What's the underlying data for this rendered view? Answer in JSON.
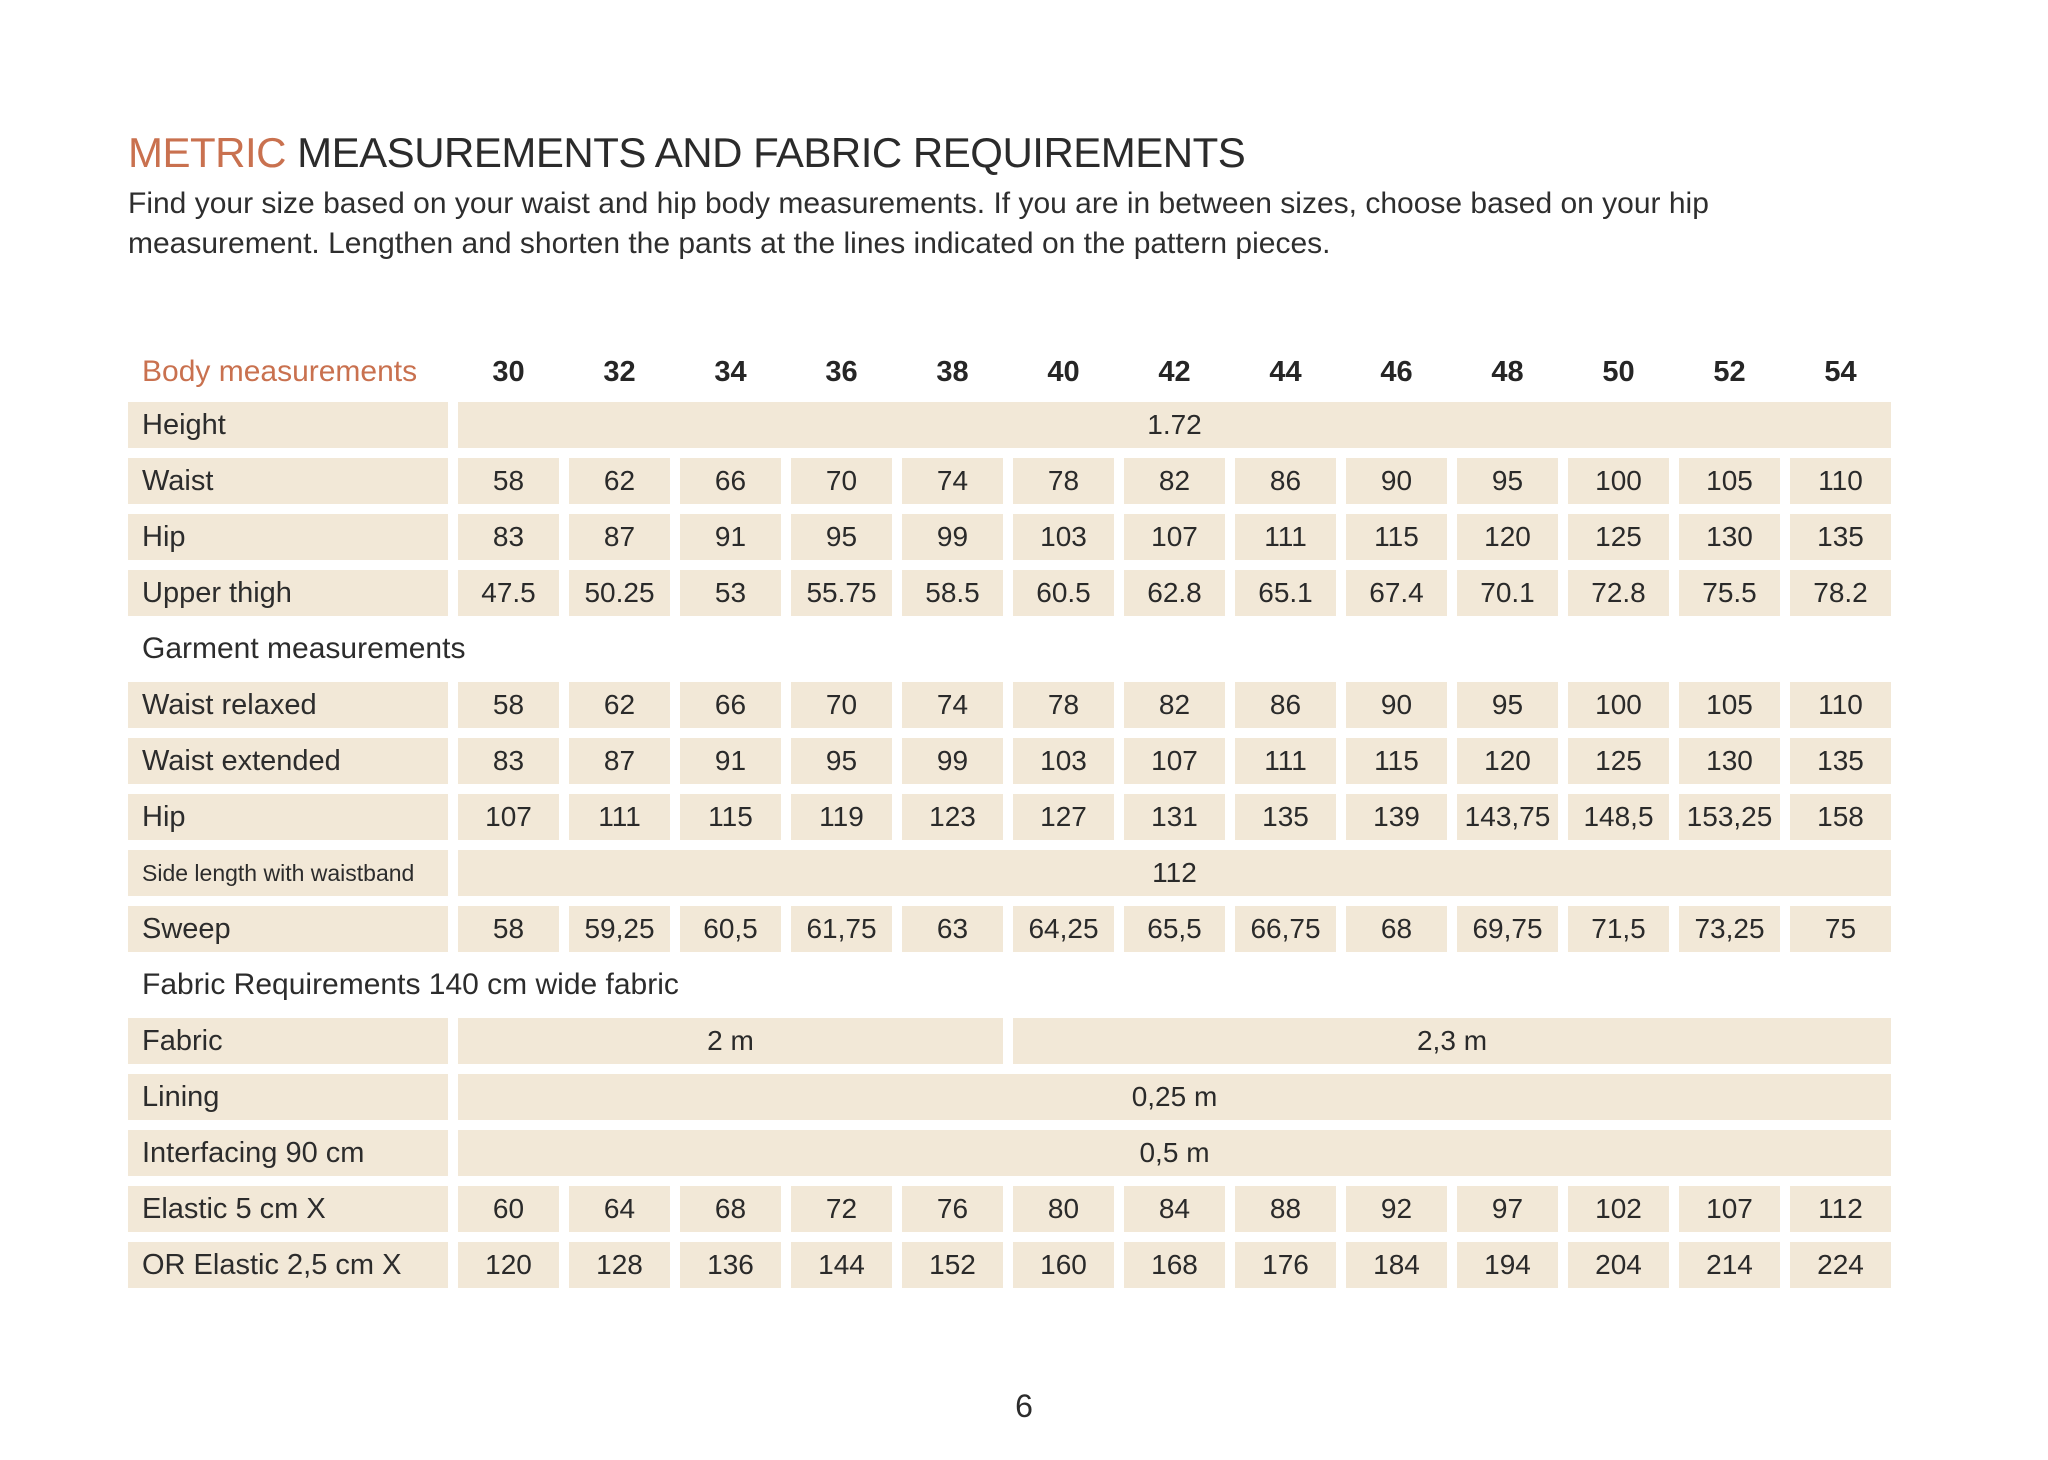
{
  "colors": {
    "accent": "#C9714F",
    "cell_background": "#F2E8D7",
    "text": "#2C2C2C"
  },
  "header": {
    "title_accent": "METRIC",
    "title_rest": " MEASUREMENTS AND FABRIC REQUIREMENTS",
    "intro": "Find your size based on your waist and hip body measurements. If you are in between sizes, choose based on your hip measurement. Lengthen and shorten the pants at the lines indicated on the pattern pieces."
  },
  "table": {
    "header_label": "Body measurements",
    "sizes": [
      "30",
      "32",
      "34",
      "36",
      "38",
      "40",
      "42",
      "44",
      "46",
      "48",
      "50",
      "52",
      "54"
    ],
    "rows": [
      {
        "type": "merged",
        "label": "Height",
        "value": "1.72"
      },
      {
        "type": "values",
        "label": "Waist",
        "values": [
          "58",
          "62",
          "66",
          "70",
          "74",
          "78",
          "82",
          "86",
          "90",
          "95",
          "100",
          "105",
          "110"
        ]
      },
      {
        "type": "values",
        "label": "Hip",
        "values": [
          "83",
          "87",
          "91",
          "95",
          "99",
          "103",
          "107",
          "111",
          "115",
          "120",
          "125",
          "130",
          "135"
        ]
      },
      {
        "type": "values",
        "label": "Upper thigh",
        "values": [
          "47.5",
          "50.25",
          "53",
          "55.75",
          "58.5",
          "60.5",
          "62.8",
          "65.1",
          "67.4",
          "70.1",
          "72.8",
          "75.5",
          "78.2"
        ]
      },
      {
        "type": "section",
        "label": "Garment measurements"
      },
      {
        "type": "values",
        "label": "Waist relaxed",
        "values": [
          "58",
          "62",
          "66",
          "70",
          "74",
          "78",
          "82",
          "86",
          "90",
          "95",
          "100",
          "105",
          "110"
        ]
      },
      {
        "type": "values",
        "label": "Waist extended",
        "values": [
          "83",
          "87",
          "91",
          "95",
          "99",
          "103",
          "107",
          "111",
          "115",
          "120",
          "125",
          "130",
          "135"
        ]
      },
      {
        "type": "values",
        "label": "Hip",
        "values": [
          "107",
          "111",
          "115",
          "119",
          "123",
          "127",
          "131",
          "135",
          "139",
          "143,75",
          "148,5",
          "153,25",
          "158"
        ]
      },
      {
        "type": "merged",
        "label": "Side length with waistband",
        "small_label": true,
        "value": "112"
      },
      {
        "type": "values",
        "label": "Sweep",
        "values": [
          "58",
          "59,25",
          "60,5",
          "61,75",
          "63",
          "64,25",
          "65,5",
          "66,75",
          "68",
          "69,75",
          "71,5",
          "73,25",
          "75"
        ]
      },
      {
        "type": "section",
        "label": "Fabric Requirements 140 cm wide fabric"
      },
      {
        "type": "split",
        "label": "Fabric",
        "cells": [
          {
            "span": 5,
            "value": "2 m"
          },
          {
            "span": 8,
            "value": "2,3 m"
          }
        ]
      },
      {
        "type": "merged",
        "label": "Lining",
        "value": "0,25 m"
      },
      {
        "type": "merged",
        "label": "Interfacing 90 cm",
        "value": "0,5 m"
      },
      {
        "type": "values",
        "label": "Elastic 5 cm X",
        "values": [
          "60",
          "64",
          "68",
          "72",
          "76",
          "80",
          "84",
          "88",
          "92",
          "97",
          "102",
          "107",
          "112"
        ]
      },
      {
        "type": "values",
        "label": "OR Elastic 2,5 cm X",
        "values": [
          "120",
          "128",
          "136",
          "144",
          "152",
          "160",
          "168",
          "176",
          "184",
          "194",
          "204",
          "214",
          "224"
        ]
      }
    ]
  },
  "footer": {
    "page_number": "6"
  }
}
